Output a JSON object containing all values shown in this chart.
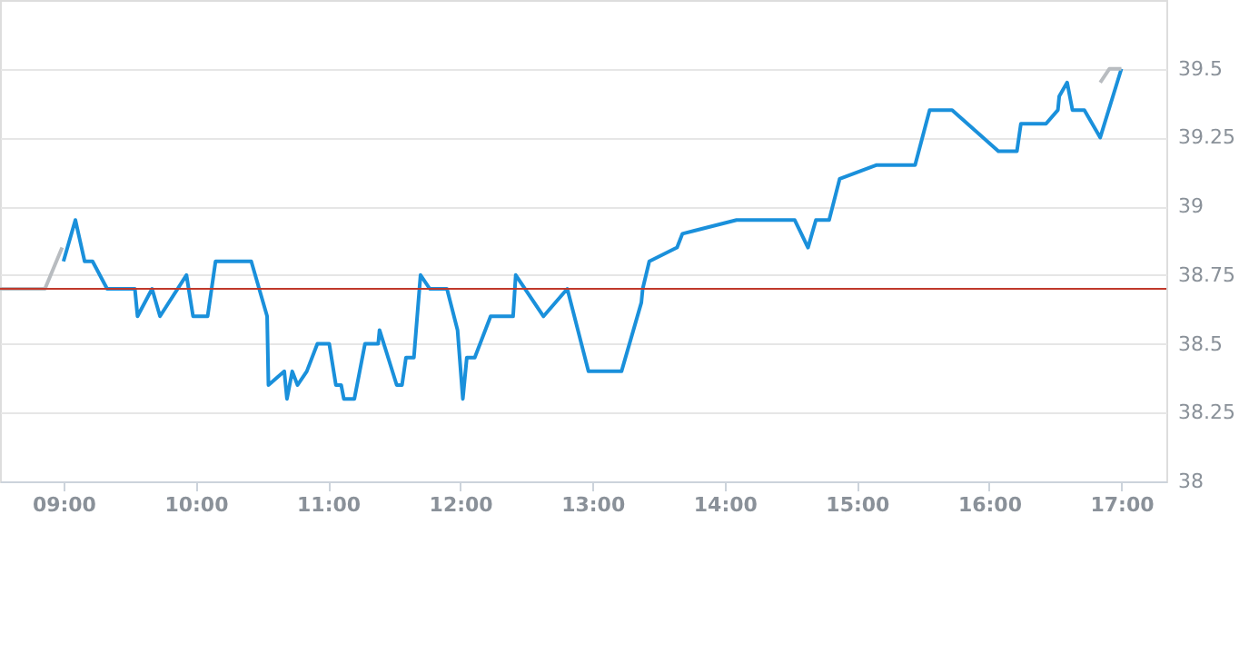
{
  "chart_data": {
    "type": "line",
    "xlim": [
      8.52,
      17.34
    ],
    "ylim": [
      38,
      39.75
    ],
    "xticks": [
      {
        "value": 9,
        "label": "09:00"
      },
      {
        "value": 10,
        "label": "10:00"
      },
      {
        "value": 11,
        "label": "11:00"
      },
      {
        "value": 12,
        "label": "12:00"
      },
      {
        "value": 13,
        "label": "13:00"
      },
      {
        "value": 14,
        "label": "14:00"
      },
      {
        "value": 15,
        "label": "15:00"
      },
      {
        "value": 16,
        "label": "16:00"
      },
      {
        "value": 17,
        "label": "17:00"
      }
    ],
    "yticks": [
      38,
      38.25,
      38.5,
      38.75,
      39,
      39.25,
      39.5
    ],
    "grid": "y",
    "legend": false,
    "marker": "none",
    "line_style": "solid",
    "ref_lines": [
      {
        "axis": "y",
        "value": 38.7,
        "color": "#c0392b"
      }
    ],
    "series": [
      {
        "type": "line",
        "color": "#b8bcc0",
        "x": [
          8.52,
          8.86,
          8.99
        ],
        "values": [
          38.7,
          38.7,
          38.85
        ]
      },
      {
        "type": "line",
        "color": "#1a90db",
        "x": [
          9.0,
          9.09,
          9.16,
          9.22,
          9.33,
          9.54,
          9.56,
          9.67,
          9.73,
          9.93,
          9.98,
          10.09,
          10.15,
          10.42,
          10.54,
          10.55,
          10.67,
          10.69,
          10.73,
          10.77,
          10.84,
          10.92,
          11.01,
          11.06,
          11.1,
          11.12,
          11.2,
          11.28,
          11.38,
          11.39,
          11.52,
          11.56,
          11.59,
          11.65,
          11.7,
          11.77,
          11.9,
          11.98,
          12.02,
          12.05,
          12.11,
          12.23,
          12.4,
          12.42,
          12.63,
          12.81,
          12.97,
          13.22,
          13.37,
          13.38,
          13.43,
          13.64,
          13.68,
          14.09,
          14.53,
          14.63,
          14.69,
          14.79,
          14.87,
          15.15,
          15.44,
          15.55,
          15.72,
          16.07,
          16.21,
          16.24,
          16.43,
          16.52,
          16.53,
          16.59,
          16.63,
          16.72,
          16.84,
          17.0
        ],
        "values": [
          38.8,
          38.95,
          38.8,
          38.8,
          38.7,
          38.7,
          38.6,
          38.7,
          38.6,
          38.75,
          38.6,
          38.6,
          38.8,
          38.8,
          38.6,
          38.35,
          38.4,
          38.3,
          38.4,
          38.35,
          38.4,
          38.5,
          38.5,
          38.35,
          38.35,
          38.3,
          38.3,
          38.5,
          38.5,
          38.55,
          38.35,
          38.35,
          38.45,
          38.45,
          38.75,
          38.7,
          38.7,
          38.55,
          38.3,
          38.45,
          38.45,
          38.6,
          38.6,
          38.75,
          38.6,
          38.7,
          38.4,
          38.4,
          38.65,
          38.7,
          38.8,
          38.85,
          38.9,
          38.95,
          38.95,
          38.85,
          38.95,
          38.95,
          39.1,
          39.15,
          39.15,
          39.35,
          39.35,
          39.2,
          39.2,
          39.3,
          39.3,
          39.35,
          39.4,
          39.45,
          39.35,
          39.35,
          39.25,
          39.5
        ]
      },
      {
        "type": "line",
        "color": "#b8bcc0",
        "x": [
          16.84,
          16.91,
          17.0
        ],
        "values": [
          39.45,
          39.5,
          39.5
        ]
      }
    ]
  }
}
